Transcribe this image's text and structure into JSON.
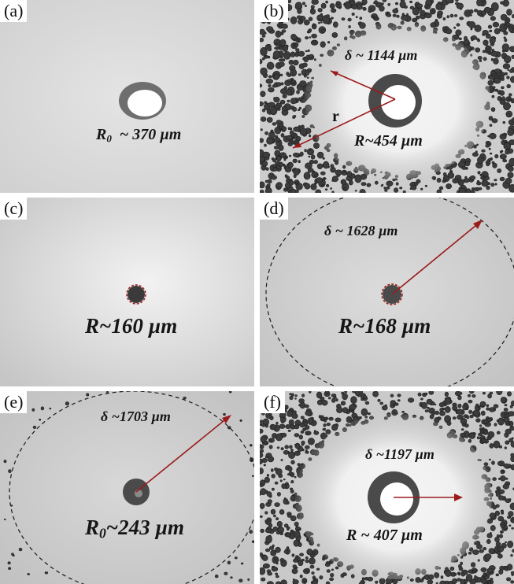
{
  "panels": [
    {
      "label": "(a)",
      "measure_symbol": "R",
      "measure_sub": "0",
      "measure_rest": "  ~ 370 µm"
    },
    {
      "label": "(b)",
      "delta": "δ ~ 1144 µm",
      "r_label": "r",
      "measure_symbol": "R",
      "measure_rest": "~454 µm"
    },
    {
      "label": "(c)",
      "measure_symbol": "R",
      "measure_rest": "~160 µm"
    },
    {
      "label": "(d)",
      "delta": "δ ~ 1628 µm",
      "measure_symbol": "R",
      "measure_rest": "~168 µm"
    },
    {
      "label": "(e)",
      "delta": "δ ~1703 µm",
      "measure_symbol": "R",
      "measure_sub": "0",
      "measure_rest": "~243 µm"
    },
    {
      "label": "(f)",
      "delta": "δ ~1197 µm",
      "measure_symbol": "R",
      "measure_rest": " ~ 407 µm"
    }
  ],
  "colors": {
    "arrow": "#9b1b1b",
    "dashed": "#1a1a1a",
    "droplet": "#3a3a3a"
  }
}
